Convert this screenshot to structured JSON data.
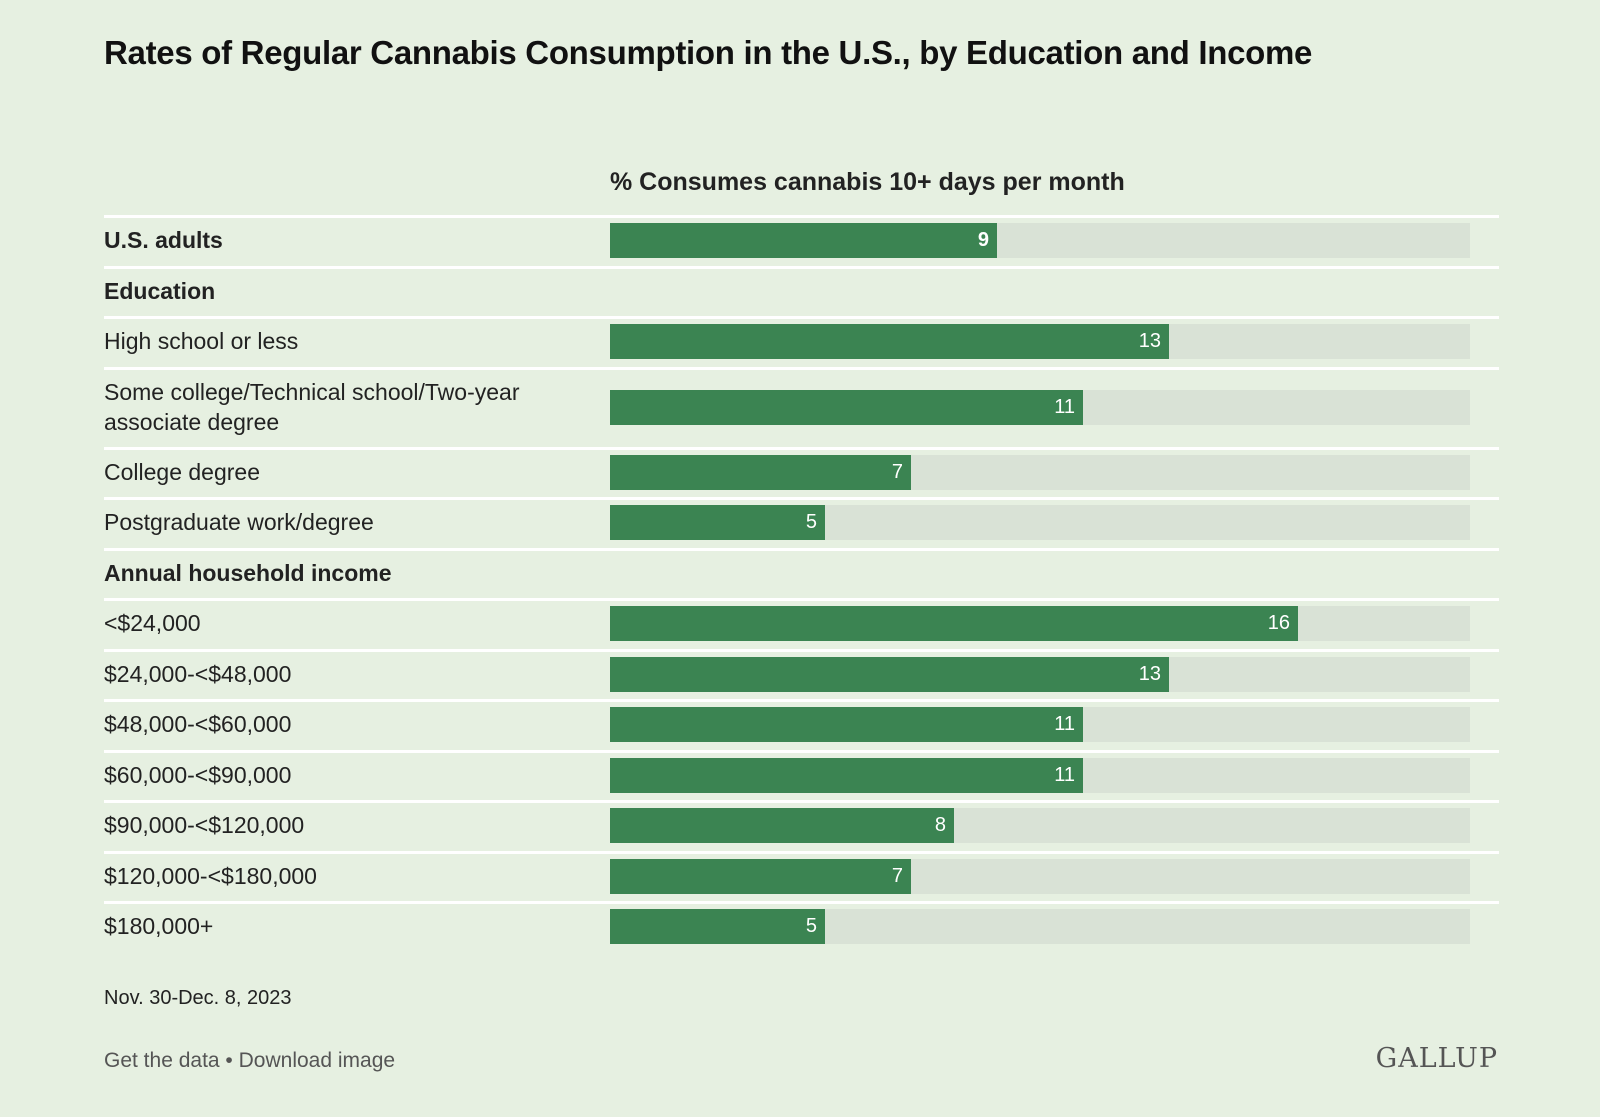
{
  "header": {
    "title": "Rates of Regular Cannabis Consumption in the U.S., by Education and Income"
  },
  "chart_data": {
    "type": "bar",
    "column_header": "% Consumes cannabis 10+ days per month",
    "xlim": [
      0,
      20
    ],
    "rows": [
      {
        "label": "U.S. adults",
        "value": 9,
        "kind": "total",
        "value_label": "9"
      },
      {
        "label": "Education",
        "kind": "group"
      },
      {
        "label": "High school or less",
        "value": 13,
        "value_label": "13"
      },
      {
        "label": "Some college/Technical school/Two-year associate degree",
        "value": 11,
        "value_label": "11",
        "tall": true
      },
      {
        "label": "College degree",
        "value": 7,
        "value_label": "7"
      },
      {
        "label": "Postgraduate work/degree",
        "value": 5,
        "value_label": "5"
      },
      {
        "label": "Annual household income",
        "kind": "group"
      },
      {
        "label": "<$24,000",
        "value": 16,
        "value_label": "16"
      },
      {
        "label": "$24,000-<$48,000",
        "value": 13,
        "value_label": "13"
      },
      {
        "label": "$48,000-<$60,000",
        "value": 11,
        "value_label": "11"
      },
      {
        "label": "$60,000-<$90,000",
        "value": 11,
        "value_label": "11"
      },
      {
        "label": "$90,000-<$120,000",
        "value": 8,
        "value_label": "8"
      },
      {
        "label": "$120,000-<$180,000",
        "value": 7,
        "value_label": "7"
      },
      {
        "label": "$180,000+",
        "value": 5,
        "value_label": "5"
      }
    ],
    "colors": {
      "bar": "#3b8452",
      "track": "#d9e2d6",
      "background": "#e6f0e1"
    }
  },
  "footer": {
    "date": "Nov. 30-Dec. 8, 2023",
    "get_data": "Get the data",
    "separator": " • ",
    "download": "Download image",
    "logo": "GALLUP"
  }
}
